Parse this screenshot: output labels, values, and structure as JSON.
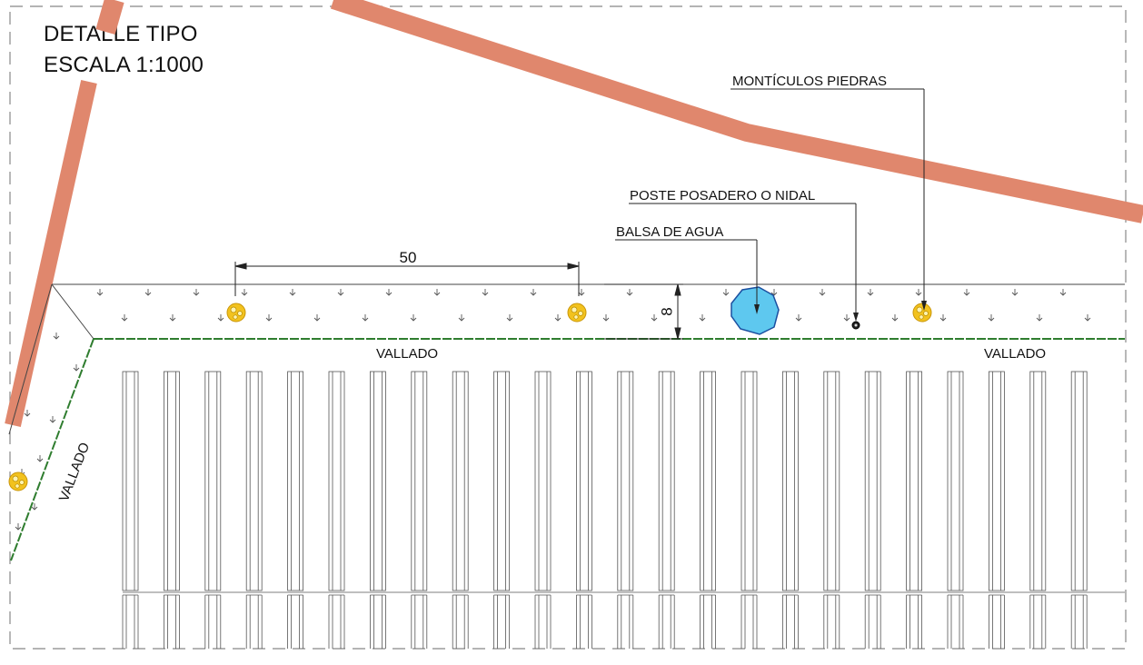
{
  "title": {
    "line1": "DETALLE TIPO",
    "line2": "ESCALA 1:1000"
  },
  "labels": {
    "monticulos": "MONTÍCULOS PIEDRAS",
    "poste": "POSTE POSADERO O NIDAL",
    "balsa": "BALSA DE AGUA",
    "vallado_center": "VALLADO",
    "vallado_right": "VALLADO",
    "vallado_diagonal": "VALLADO"
  },
  "dimensions": {
    "spacing": "50",
    "width": "8"
  },
  "colors": {
    "road": "#e0876d",
    "water": "#5ec8ef",
    "water_stroke": "#1b4fa0",
    "stone": "#f2c21e",
    "fence": "#2f7d2f",
    "frame": "#888888",
    "line": "#444444"
  },
  "icons": {
    "vegetation": "arrow-down-grass-symbol",
    "stone_mound": "stone-pile-icon",
    "perch_pole": "pole-dot-icon",
    "water_pond": "pond-icon"
  }
}
